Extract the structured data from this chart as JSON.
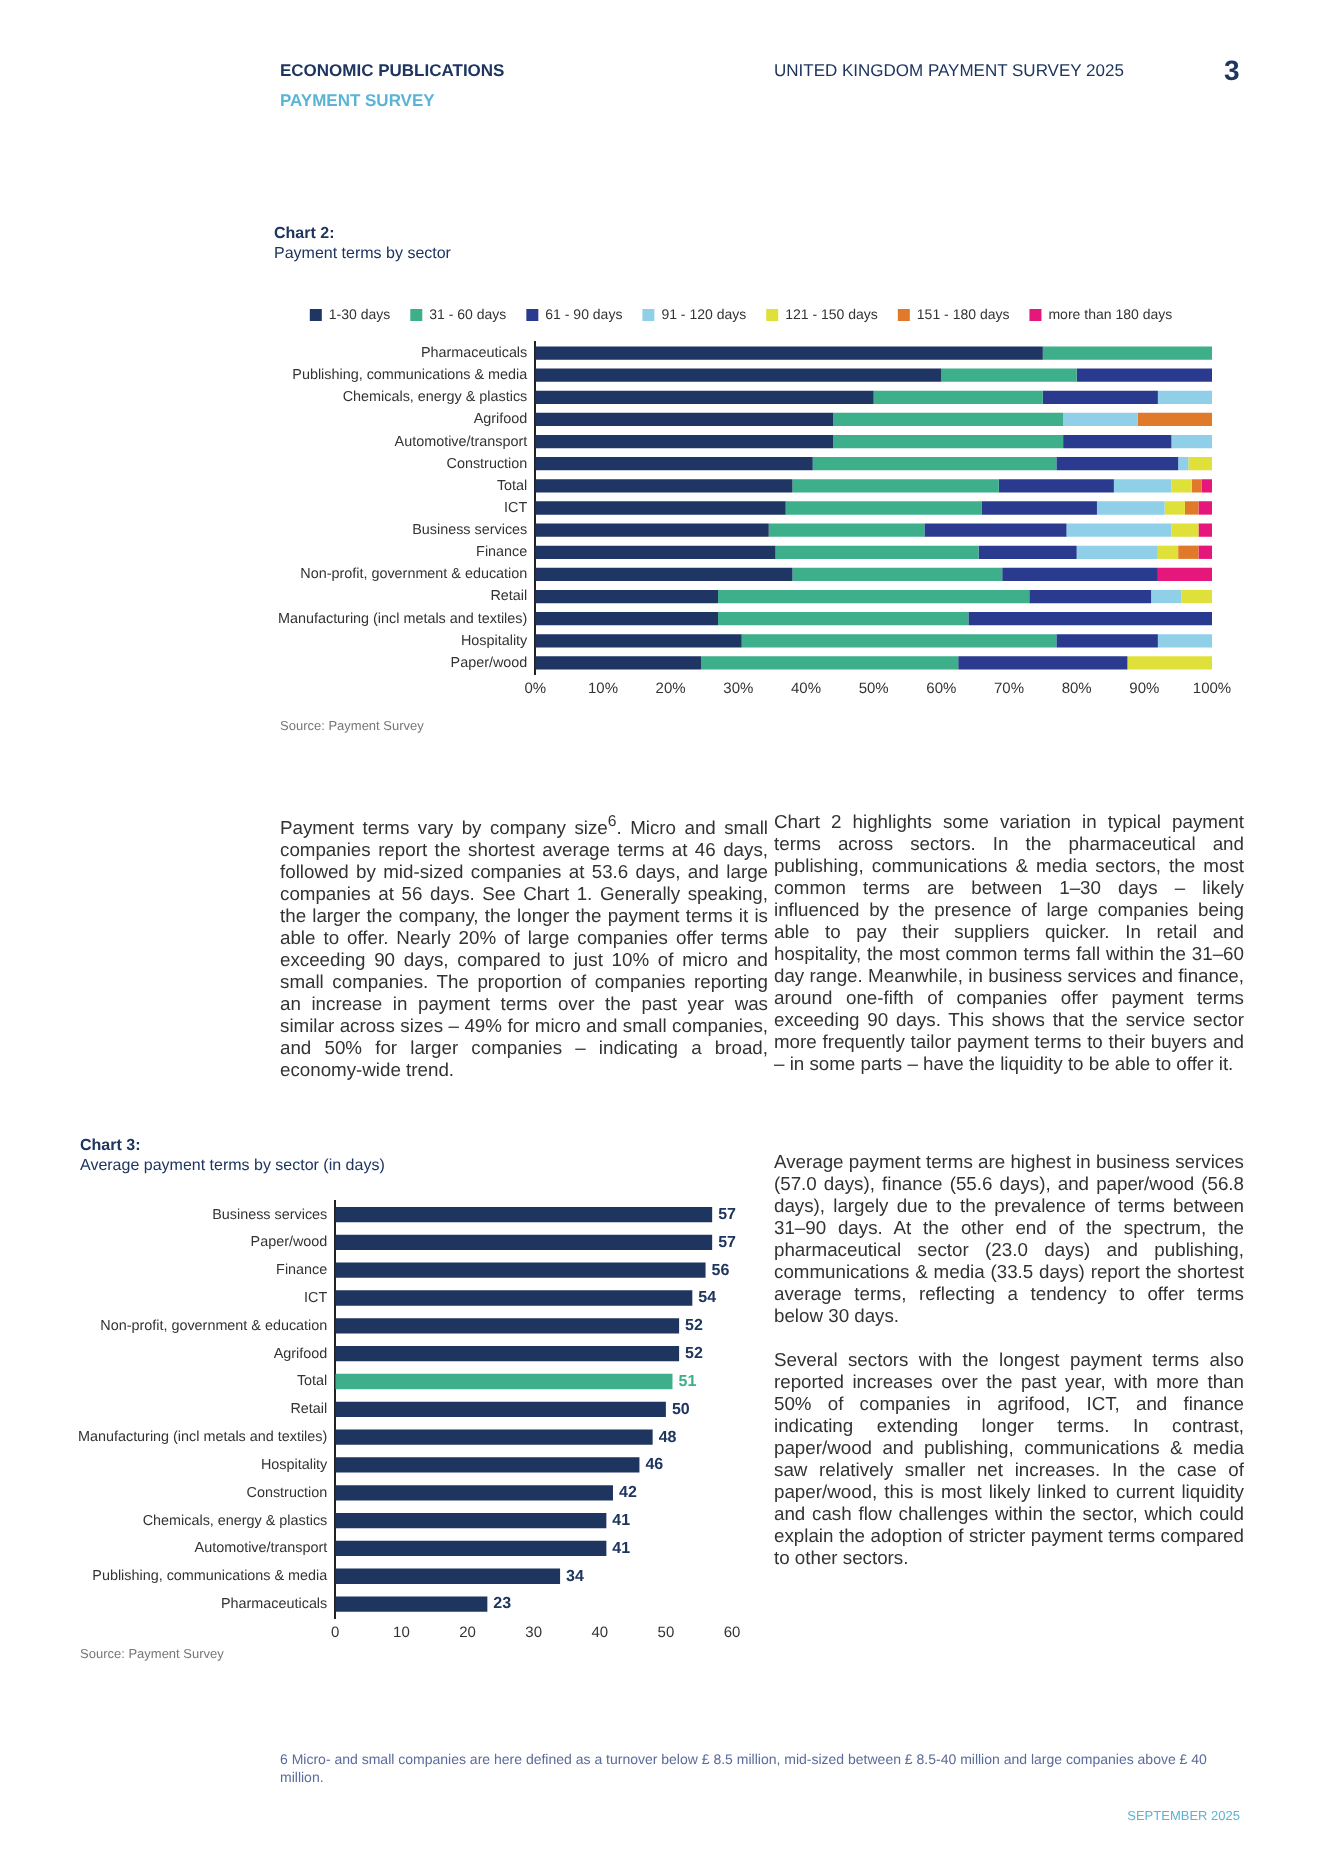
{
  "chart_data": [
    {
      "type": "bar",
      "title": "Chart 2:",
      "subtitle": "Payment terms by sector",
      "orientation": "horizontal",
      "stacked": true,
      "legend": "top",
      "grid": false,
      "categories": [
        "Pharmaceuticals",
        "Publishing, communications & media",
        "Chemicals, energy & plastics",
        "Agrifood",
        "Automotive/transport",
        "Construction",
        "Total",
        "ICT",
        "Business services",
        "Finance",
        "Non-profit, government & education",
        "Retail",
        "Manufacturing (incl metals and textiles)",
        "Hospitality",
        "Paper/wood"
      ],
      "xlim": [
        0,
        100
      ],
      "xticks": [
        {
          "value": 0,
          "label": "0%"
        },
        {
          "value": 10,
          "label": "10%"
        },
        {
          "value": 20,
          "label": "20%"
        },
        {
          "value": 30,
          "label": "30%"
        },
        {
          "value": 40,
          "label": "40%"
        },
        {
          "value": 50,
          "label": "50%"
        },
        {
          "value": 60,
          "label": "60%"
        },
        {
          "value": 70,
          "label": "70%"
        },
        {
          "value": 80,
          "label": "80%"
        },
        {
          "value": 90,
          "label": "90%"
        },
        {
          "value": 100,
          "label": "100%"
        }
      ],
      "series": [
        {
          "name": "1-30 days",
          "color": "#1f3564",
          "values": [
            75,
            60,
            50,
            44,
            44,
            41,
            38,
            37,
            34.5,
            35.5,
            38,
            27,
            27,
            30.5,
            24.5
          ]
        },
        {
          "name": "31 - 60 days",
          "color": "#3daf8a",
          "values": [
            25,
            20,
            25,
            34,
            34,
            36,
            30.5,
            29,
            23,
            30,
            31,
            46,
            37,
            46.5,
            38
          ]
        },
        {
          "name": "61 - 90 days",
          "color": "#2a3a8f",
          "values": [
            0,
            20,
            17,
            0,
            16,
            18,
            17,
            17,
            21,
            14.5,
            23,
            18,
            36,
            15,
            25
          ]
        },
        {
          "name": "91 - 120 days",
          "color": "#8fcfe8",
          "values": [
            0,
            0,
            8,
            11,
            6,
            1.5,
            8.5,
            10,
            15.5,
            12,
            0,
            4.5,
            0,
            8,
            0
          ]
        },
        {
          "name": "121 - 150 days",
          "color": "#e0e03a",
          "values": [
            0,
            0,
            0,
            0,
            0,
            3.5,
            3,
            3,
            4,
            3,
            0,
            4.5,
            0,
            0,
            12.5
          ]
        },
        {
          "name": "151 - 180 days",
          "color": "#e07a2a",
          "values": [
            0,
            0,
            0,
            11,
            0,
            0,
            1.5,
            2,
            0,
            3,
            0,
            0,
            0,
            0,
            0
          ]
        },
        {
          "name": "more than 180 days",
          "color": "#e6177a",
          "values": [
            0,
            0,
            0,
            0,
            0,
            0,
            1.5,
            2,
            2,
            2,
            8,
            0,
            0,
            0,
            0
          ]
        }
      ],
      "annotations": [
        "ECONOMIC PUBLICATIONS",
        "PAYMENT SURVEY",
        "UNITED KINGDOM PAYMENT SURVEY 2025",
        "3",
        "Source: Payment Survey",
        "Payment terms vary by company size$^{6}$. Micro and small companies report the shortest average terms at 46 days, followed by mid-sized companies at 53.6 days, and large companies at 56 days. See Chart 1. Generally speaking, the larger the company, the longer the payment terms it is able to offer. Nearly 20% of large companies offer terms exceeding 90 days, compared to just 10% of micro and small companies. The proportion of companies reporting an increase in payment terms over the past year was similar across sizes – 49% for micro and small companies, and 50% for larger companies – indicating a broad, economy-wide trend.",
        "Chart 2 highlights some variation in typical payment terms across sectors. In the pharmaceutical and publishing, communications & media sectors, the most common terms are between 1–30 days – likely influenced by the presence of large companies being able to pay their suppliers quicker. In retail and hospitality, the most common terms fall within the 31–60 day range. Meanwhile, in business services and finance, around one-fifth of companies offer payment terms exceeding 90 days. This shows that the service sector more frequently tailor payment terms to their buyers and – in some parts – have the liquidity to be able to offer it.",
        "Average payment terms are highest in business services (57.0 days), finance (55.6 days), and paper/wood (56.8 days), largely due to the prevalence of terms between 31–90 days. At the other end of the spectrum, the pharmaceutical sector (23.0 days) and publishing, communications & media (33.5 days) report the shortest average terms, reflecting a tendency to offer terms below 30 days.",
        "Several sectors with the longest payment terms also reported increases over the past year, with more than 50% of companies in agrifood, ICT, and finance indicating extending longer terms. In contrast, paper/wood and publishing, communications & media saw relatively smaller net increases. In the case of paper/wood, this is most likely linked to current liquidity and cash flow challenges within the sector, which could explain the adoption of stricter payment terms compared to other sectors.",
        "6  Micro- and small companies are here defined as a turnover below £ 8.5 million, mid-sized between £ 8.5-40 million and large companies above £ 40 million.",
        "SEPTEMBER 2025"
      ]
    },
    {
      "type": "bar",
      "title": "Chart 3:",
      "subtitle": "Average payment terms by sector (in days)",
      "orientation": "horizontal",
      "grid": false,
      "data_labels": true,
      "categories": [
        "Business services",
        "Paper/wood",
        "Finance",
        "ICT",
        "Non-profit, government & education",
        "Agrifood",
        "Total",
        "Retail",
        "Manufacturing (incl metals and textiles)",
        "Hospitality",
        "Construction",
        "Chemicals, energy & plastics",
        "Automotive/transport",
        "Publishing, communications & media",
        "Pharmaceuticals"
      ],
      "values": [
        57,
        57,
        56,
        54,
        52,
        52,
        51,
        50,
        48,
        46,
        42,
        41,
        41,
        34,
        23
      ],
      "colors": [
        "#1e3560",
        "#1e3560",
        "#1e3560",
        "#1e3560",
        "#1e3560",
        "#1e3560",
        "#3daf8a",
        "#1e3560",
        "#1e3560",
        "#1e3560",
        "#1e3560",
        "#1e3560",
        "#1e3560",
        "#1e3560",
        "#1e3560"
      ],
      "xlim": [
        0,
        60
      ],
      "xticks": [
        0,
        10,
        20,
        30,
        40,
        50,
        60
      ],
      "annotations": [
        "Source: Payment Survey"
      ]
    }
  ]
}
